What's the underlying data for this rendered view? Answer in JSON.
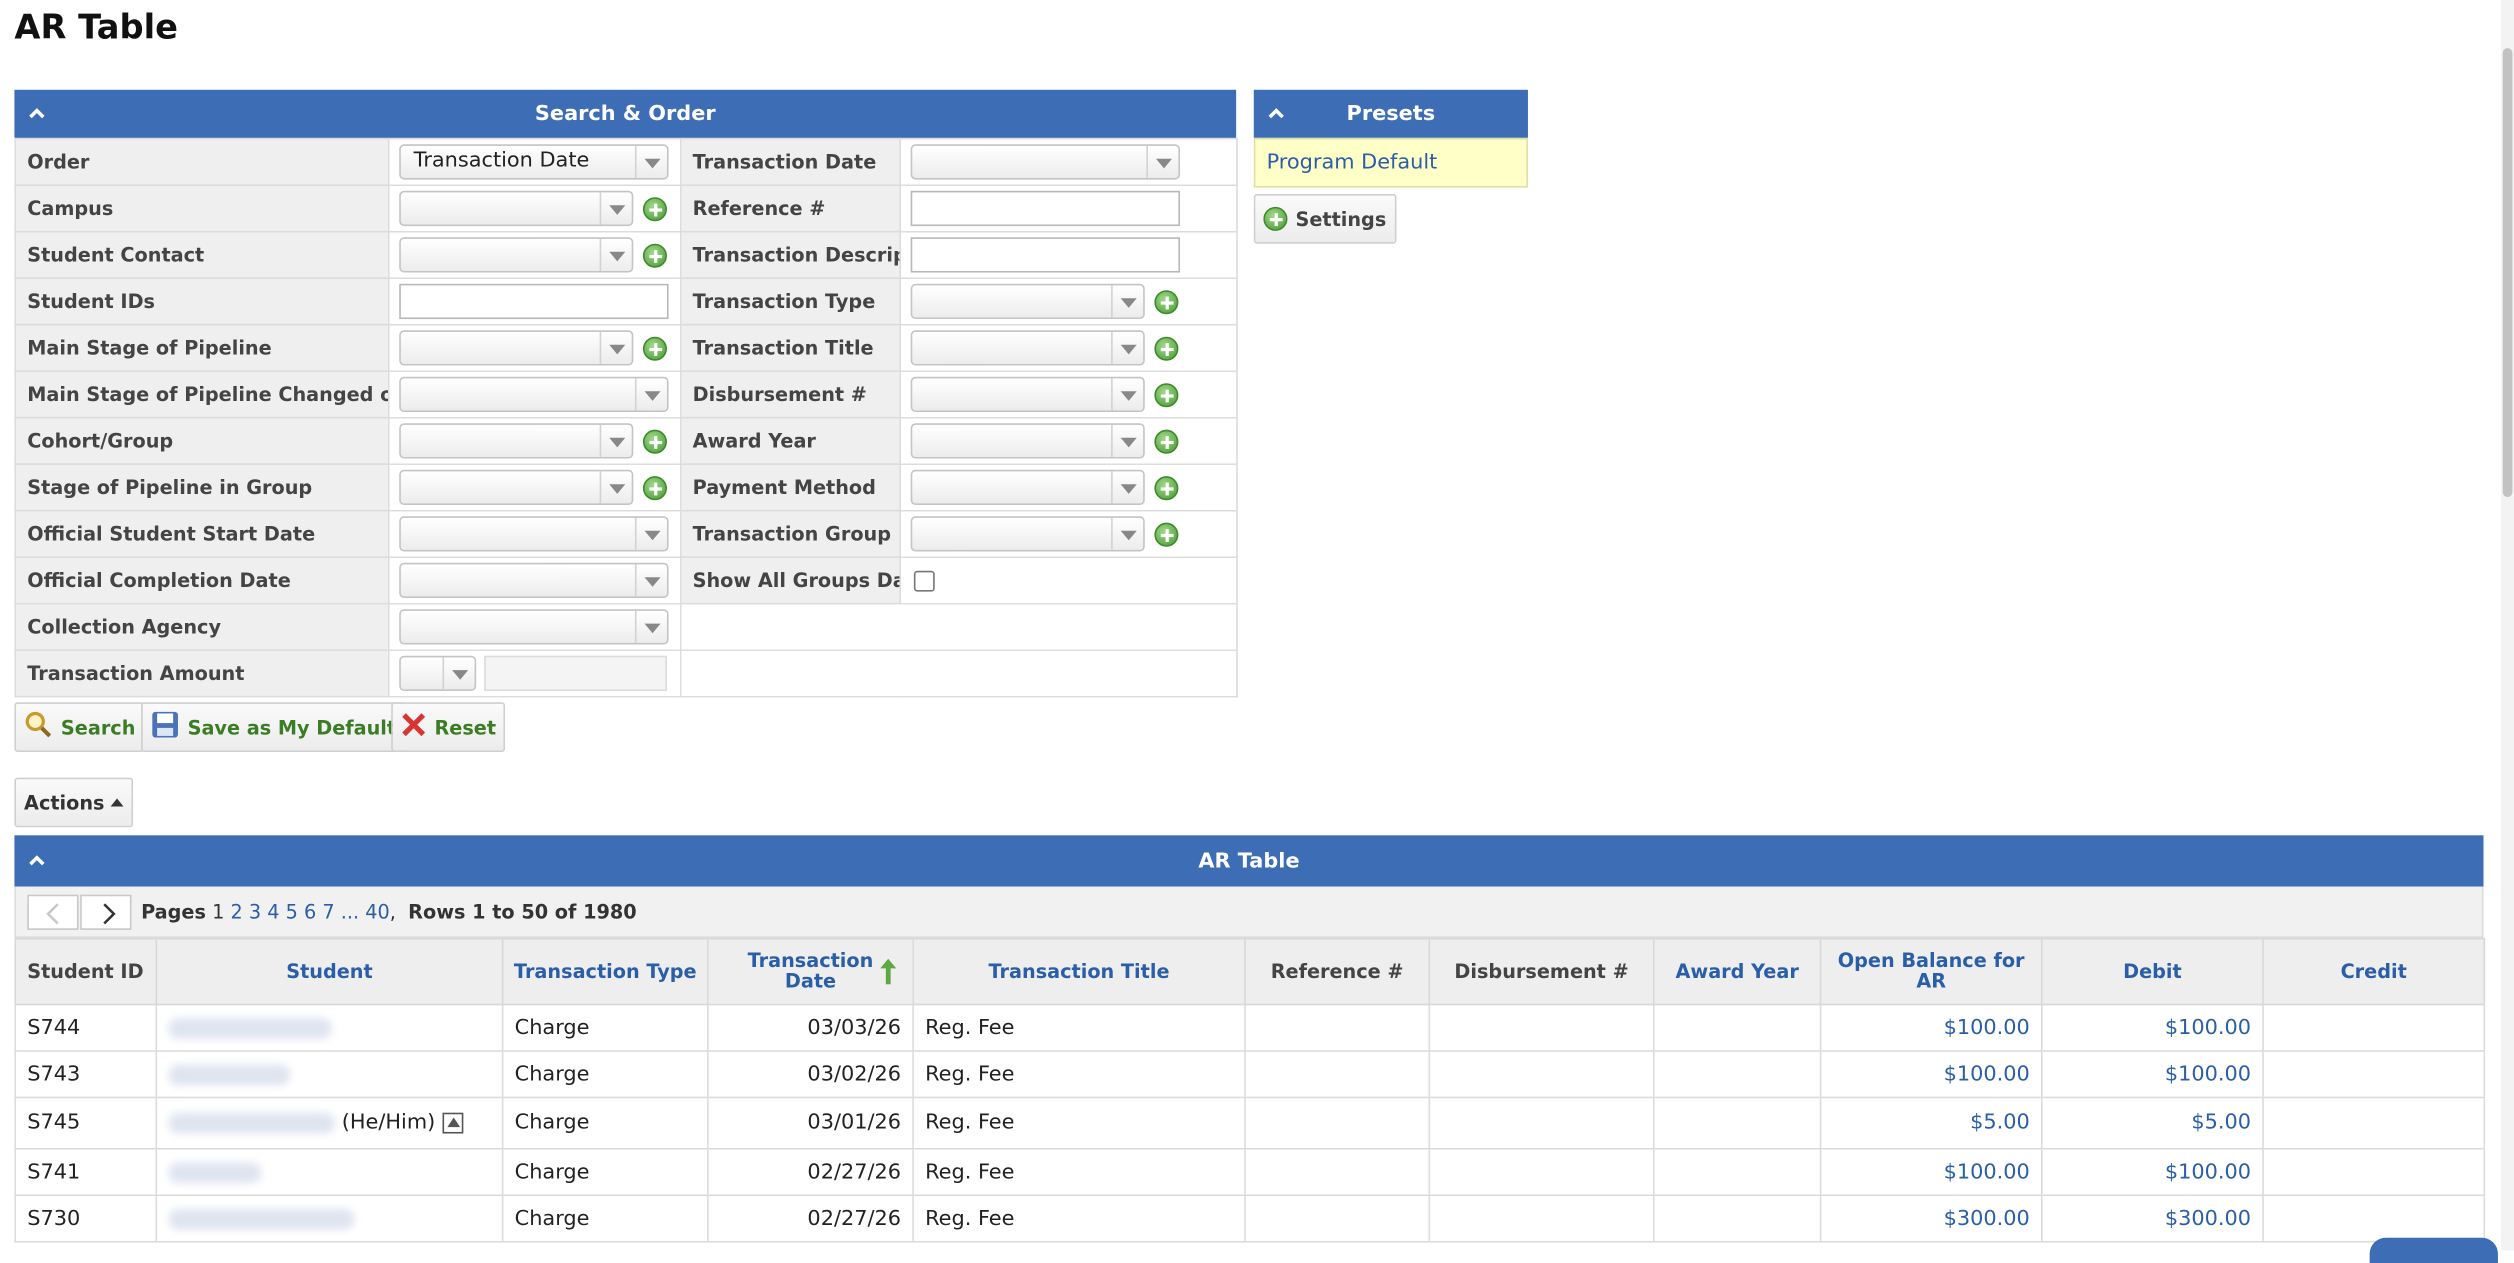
{
  "page": {
    "title": "AR Table"
  },
  "search_panel": {
    "title": "Search & Order",
    "left_fields": [
      {
        "label": "Order",
        "value": "Transaction Date"
      },
      {
        "label": "Campus",
        "value": ""
      },
      {
        "label": "Student Contact",
        "value": ""
      },
      {
        "label": "Student IDs",
        "value": ""
      },
      {
        "label": "Main Stage of Pipeline",
        "value": ""
      },
      {
        "label": "Main Stage of Pipeline Changed on",
        "value": ""
      },
      {
        "label": "Cohort/Group",
        "value": ""
      },
      {
        "label": "Stage of Pipeline in Group",
        "value": ""
      },
      {
        "label": "Official Student Start Date",
        "value": ""
      },
      {
        "label": "Official Completion Date",
        "value": ""
      },
      {
        "label": "Collection Agency",
        "value": ""
      },
      {
        "label": "Transaction Amount",
        "value": ""
      }
    ],
    "right_fields": [
      {
        "label": "Transaction Date",
        "value": ""
      },
      {
        "label": "Reference #",
        "value": ""
      },
      {
        "label": "Transaction Description",
        "value": ""
      },
      {
        "label": "Transaction Type",
        "value": ""
      },
      {
        "label": "Transaction Title",
        "value": ""
      },
      {
        "label": "Disbursement #",
        "value": ""
      },
      {
        "label": "Award Year",
        "value": ""
      },
      {
        "label": "Payment Method",
        "value": ""
      },
      {
        "label": "Transaction Group",
        "value": ""
      },
      {
        "label": "Show All Groups Data",
        "value": ""
      }
    ],
    "buttons": {
      "search": "Search",
      "save_default": "Save as My Default",
      "reset": "Reset"
    }
  },
  "presets_panel": {
    "title": "Presets",
    "items": [
      "Program Default"
    ],
    "settings_label": "Settings"
  },
  "actions": {
    "label": "Actions"
  },
  "ar_table": {
    "title": "AR Table",
    "pager": {
      "pages_label": "Pages",
      "current_page": "1",
      "page_links": [
        "2",
        "3",
        "4",
        "5",
        "6",
        "7",
        "...",
        "40"
      ],
      "rows_label": "Rows 1 to 50 of 1980"
    },
    "columns": [
      "Student ID",
      "Student",
      "Transaction Type",
      "Transaction Date",
      "Transaction Title",
      "Reference #",
      "Disbursement #",
      "Award Year",
      "Open Balance for AR",
      "Debit",
      "Credit"
    ],
    "rows": [
      {
        "student_id": "S744",
        "pronouns": "",
        "type": "Charge",
        "date": "03/03/26",
        "title": "Reg. Fee",
        "reference": "",
        "disbursement": "",
        "award_year": "",
        "open_balance": "$100.00",
        "debit": "$100.00",
        "credit": ""
      },
      {
        "student_id": "S743",
        "pronouns": "",
        "type": "Charge",
        "date": "03/02/26",
        "title": "Reg. Fee",
        "reference": "",
        "disbursement": "",
        "award_year": "",
        "open_balance": "$100.00",
        "debit": "$100.00",
        "credit": ""
      },
      {
        "student_id": "S745",
        "pronouns": "(He/Him)",
        "type": "Charge",
        "date": "03/01/26",
        "title": "Reg. Fee",
        "reference": "",
        "disbursement": "",
        "award_year": "",
        "open_balance": "$5.00",
        "debit": "$5.00",
        "credit": ""
      },
      {
        "student_id": "S741",
        "pronouns": "",
        "type": "Charge",
        "date": "02/27/26",
        "title": "Reg. Fee",
        "reference": "",
        "disbursement": "",
        "award_year": "",
        "open_balance": "$100.00",
        "debit": "$100.00",
        "credit": ""
      },
      {
        "student_id": "S730",
        "pronouns": "",
        "type": "Charge",
        "date": "02/27/26",
        "title": "Reg. Fee",
        "reference": "",
        "disbursement": "",
        "award_year": "",
        "open_balance": "$300.00",
        "debit": "$300.00",
        "credit": ""
      }
    ]
  },
  "colors": {
    "header_blue": "#3d6db5",
    "link_blue": "#2a5ea8",
    "preset_yellow": "#ffffc8",
    "button_green": "#3a7d24"
  }
}
